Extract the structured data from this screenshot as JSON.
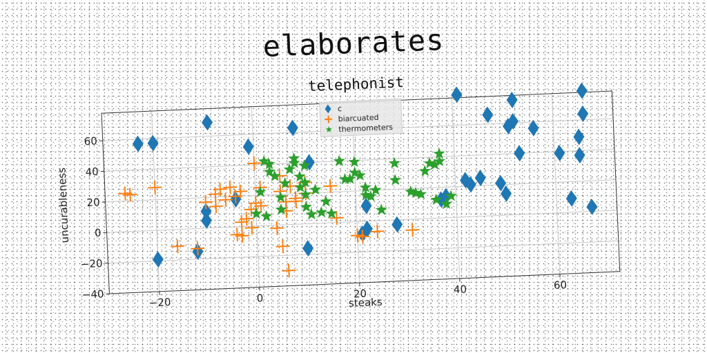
{
  "suptitle": "elaborates",
  "chart_data": {
    "type": "scatter",
    "title": "telephonist",
    "xlabel": "steaks",
    "ylabel": "uncurableness",
    "xlim": [
      -30,
      72
    ],
    "ylim": [
      -40,
      78
    ],
    "xticks": [
      -20,
      0,
      20,
      40,
      60
    ],
    "yticks": [
      -40,
      -20,
      0,
      20,
      40,
      60
    ],
    "grid": true,
    "legend_position": "top-center",
    "series": [
      {
        "name": "c",
        "marker": "diamond",
        "color": "#1f77b4",
        "points": [
          [
            -23,
            57
          ],
          [
            -20,
            57
          ],
          [
            -9,
            69
          ],
          [
            -1,
            52
          ],
          [
            8,
            63
          ],
          [
            11,
            40
          ],
          [
            -20,
            -19
          ],
          [
            -12,
            -15
          ],
          [
            -10,
            5
          ],
          [
            -10,
            11
          ],
          [
            -4,
            18
          ],
          [
            10,
            -16
          ],
          [
            22,
            10
          ],
          [
            22,
            -5
          ],
          [
            21,
            -8
          ],
          [
            28,
            -3
          ],
          [
            37,
            12
          ],
          [
            38,
            14
          ],
          [
            41,
            80
          ],
          [
            42,
            24
          ],
          [
            43,
            21
          ],
          [
            45,
            25
          ],
          [
            47,
            66
          ],
          [
            49,
            21
          ],
          [
            50,
            14
          ],
          [
            51,
            58
          ],
          [
            52,
            61
          ],
          [
            52,
            75
          ],
          [
            53,
            40
          ],
          [
            56,
            56
          ],
          [
            61,
            39
          ],
          [
            63,
            9
          ],
          [
            65,
            49
          ],
          [
            65,
            37
          ],
          [
            66,
            64
          ],
          [
            66,
            79
          ],
          [
            67,
            3
          ]
        ]
      },
      {
        "name": "biarcuated",
        "marker": "plus",
        "color": "#ff7f0e",
        "points": [
          [
            -25,
            24
          ],
          [
            -26,
            25
          ],
          [
            -20,
            28
          ],
          [
            -16,
            -11
          ],
          [
            -12,
            -13
          ],
          [
            -10,
            17
          ],
          [
            -8,
            14
          ],
          [
            -8,
            22
          ],
          [
            -7,
            25
          ],
          [
            -6,
            18
          ],
          [
            -5,
            26
          ],
          [
            -4,
            20
          ],
          [
            -4,
            -5
          ],
          [
            -3,
            -6
          ],
          [
            -3,
            3
          ],
          [
            -3,
            23
          ],
          [
            -2,
            5
          ],
          [
            -1,
            -1
          ],
          [
            -1,
            11
          ],
          [
            0,
            41
          ],
          [
            0,
            15
          ],
          [
            1,
            13
          ],
          [
            1,
            25
          ],
          [
            4,
            -2
          ],
          [
            5,
            -14
          ],
          [
            5,
            32
          ],
          [
            5,
            22
          ],
          [
            6,
            9
          ],
          [
            6,
            15
          ],
          [
            6,
            -30
          ],
          [
            7,
            25
          ],
          [
            8,
            17
          ],
          [
            8,
            15
          ],
          [
            10,
            20
          ],
          [
            10,
            27
          ],
          [
            15,
            24
          ],
          [
            16,
            3
          ],
          [
            20,
            -9
          ],
          [
            21,
            -10
          ],
          [
            24,
            -7
          ],
          [
            31,
            -7
          ]
        ]
      },
      {
        "name": "thermometers",
        "marker": "star",
        "color": "#2ca02c",
        "points": [
          [
            0,
            8
          ],
          [
            1,
            22
          ],
          [
            2,
            6
          ],
          [
            2,
            42
          ],
          [
            3,
            35
          ],
          [
            3,
            40
          ],
          [
            4,
            32
          ],
          [
            5,
            10
          ],
          [
            5,
            18
          ],
          [
            6,
            27
          ],
          [
            7,
            36
          ],
          [
            8,
            40
          ],
          [
            8,
            43
          ],
          [
            9,
            31
          ],
          [
            9,
            24
          ],
          [
            10,
            27
          ],
          [
            10,
            38
          ],
          [
            10,
            11
          ],
          [
            10,
            19
          ],
          [
            11,
            6
          ],
          [
            12,
            22
          ],
          [
            13,
            7
          ],
          [
            14,
            14
          ],
          [
            15,
            6
          ],
          [
            17,
            40
          ],
          [
            18,
            28
          ],
          [
            19,
            28
          ],
          [
            20,
            39
          ],
          [
            20,
            32
          ],
          [
            21,
            30
          ],
          [
            22,
            22
          ],
          [
            22,
            17
          ],
          [
            23,
            16
          ],
          [
            24,
            20
          ],
          [
            25,
            7
          ],
          [
            28,
            37
          ],
          [
            28,
            26
          ],
          [
            31,
            18
          ],
          [
            32,
            17
          ],
          [
            33,
            16
          ],
          [
            34,
            31
          ],
          [
            35,
            36
          ],
          [
            36,
            35
          ],
          [
            36,
            12
          ],
          [
            37,
            37
          ],
          [
            37,
            42
          ],
          [
            39,
            14
          ],
          [
            38,
            9
          ]
        ]
      }
    ]
  }
}
